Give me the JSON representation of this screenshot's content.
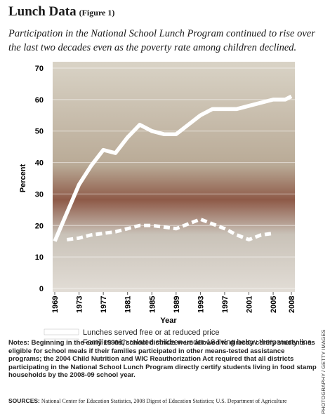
{
  "chart_data": {
    "type": "line",
    "title": "Lunch Data",
    "figure_label": "(Figure 1)",
    "subtitle": "Participation in the National School Lunch Program continued to rise over the last two decades even as the poverty rate among children declined.",
    "x_label": "Year",
    "y_label": "Percent",
    "x": [
      1969,
      1971,
      1973,
      1975,
      1977,
      1979,
      1981,
      1983,
      1985,
      1987,
      1989,
      1991,
      1993,
      1995,
      1997,
      1999,
      2001,
      2003,
      2005,
      2007,
      2008
    ],
    "series": [
      {
        "name": "Lunches served free or at reduced price",
        "color": "#ffffff",
        "style": "solid",
        "values": [
          15,
          24,
          33,
          39,
          44,
          43,
          48,
          52,
          50,
          49,
          49,
          52,
          55,
          57,
          57,
          57,
          58,
          59,
          60,
          60,
          61
        ]
      },
      {
        "name": "Families with related children under 18 living below the poverty line",
        "color": "#ffffff",
        "style": "dashed",
        "values": [
          null,
          15.5,
          16,
          17,
          17.5,
          18,
          19,
          20,
          20,
          19.5,
          19,
          20.5,
          22,
          20.5,
          19,
          17,
          15.5,
          17,
          17.5,
          null,
          null
        ]
      }
    ],
    "xlim": [
      1969,
      2008
    ],
    "xticks": [
      1969,
      1973,
      1977,
      1981,
      1985,
      1989,
      1993,
      1997,
      2001,
      2005,
      2008
    ],
    "ylim": [
      0,
      70
    ],
    "yticks": [
      0,
      10,
      20,
      30,
      40,
      50,
      60,
      70
    ],
    "grid": true,
    "notes_label": "Notes:",
    "notes": "Beginning in the early 1990s, school districts were allowed to directly certify students as eligible for school meals if their families participated in other means-tested assistance programs; the 2004 Child Nutrition and WIC Reauthorization Act required that all districts participating in the National School Lunch Program directly certify students living in food stamp households by the 2008-09 school year.",
    "sources_label": "SOURCES:",
    "sources": "National Center for Education Statistics, 2008 Digest of Education Statistics; U.S. Department of Agriculture",
    "credit": "PHOTOGRAPHY / GETTY IMAGES"
  }
}
